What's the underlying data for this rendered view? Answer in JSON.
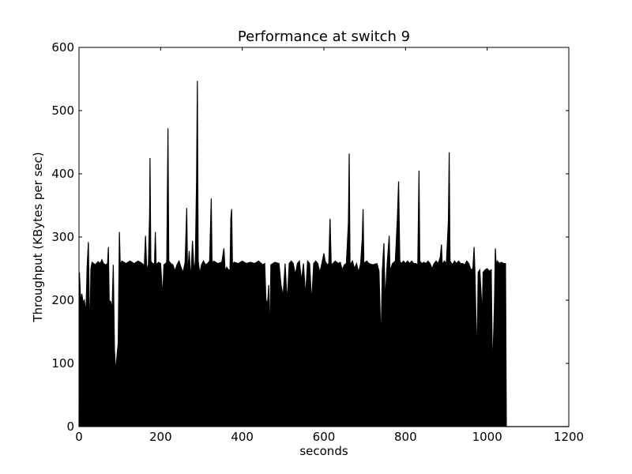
{
  "chart_data": {
    "type": "line",
    "title": "Performance at switch 9",
    "xlabel": "seconds",
    "ylabel": "Throughput (KBytes per sec)",
    "xlim": [
      0,
      1200
    ],
    "ylim": [
      0,
      600
    ],
    "xticks": [
      "0",
      "200",
      "400",
      "600",
      "800",
      "1000",
      "1200"
    ],
    "yticks": [
      "0",
      "100",
      "200",
      "300",
      "400",
      "500",
      "600"
    ],
    "grid": false,
    "fill_to_zero": true,
    "series": [
      {
        "color": "#000000",
        "points": [
          [
            0,
            0
          ],
          [
            1,
            244
          ],
          [
            4,
            200
          ],
          [
            7,
            210
          ],
          [
            10,
            196
          ],
          [
            13,
            200
          ],
          [
            17,
            180
          ],
          [
            20,
            254
          ],
          [
            23,
            292
          ],
          [
            25,
            200
          ],
          [
            27,
            145
          ],
          [
            29,
            250
          ],
          [
            32,
            260
          ],
          [
            40,
            256
          ],
          [
            47,
            261
          ],
          [
            52,
            258
          ],
          [
            56,
            264
          ],
          [
            60,
            258
          ],
          [
            65,
            256
          ],
          [
            70,
            258
          ],
          [
            72,
            284
          ],
          [
            74,
            200
          ],
          [
            78,
            197
          ],
          [
            81,
            184
          ],
          [
            84,
            256
          ],
          [
            87,
            120
          ],
          [
            90,
            86
          ],
          [
            93,
            112
          ],
          [
            96,
            132
          ],
          [
            99,
            308
          ],
          [
            101,
            256
          ],
          [
            105,
            262
          ],
          [
            115,
            258
          ],
          [
            125,
            262
          ],
          [
            135,
            258
          ],
          [
            145,
            262
          ],
          [
            155,
            258
          ],
          [
            160,
            254
          ],
          [
            163,
            302
          ],
          [
            166,
            248
          ],
          [
            170,
            256
          ],
          [
            173,
            336
          ],
          [
            174,
            425
          ],
          [
            176,
            262
          ],
          [
            180,
            258
          ],
          [
            185,
            258
          ],
          [
            187,
            308
          ],
          [
            189,
            256
          ],
          [
            195,
            260
          ],
          [
            200,
            258
          ],
          [
            205,
            204
          ],
          [
            208,
            256
          ],
          [
            212,
            258
          ],
          [
            215,
            260
          ],
          [
            218,
            472
          ],
          [
            220,
            262
          ],
          [
            225,
            258
          ],
          [
            230,
            256
          ],
          [
            235,
            246
          ],
          [
            240,
            256
          ],
          [
            245,
            262
          ],
          [
            250,
            252
          ],
          [
            255,
            244
          ],
          [
            260,
            260
          ],
          [
            264,
            346
          ],
          [
            266,
            236
          ],
          [
            270,
            278
          ],
          [
            274,
            230
          ],
          [
            278,
            294
          ],
          [
            282,
            244
          ],
          [
            285,
            262
          ],
          [
            288,
            390
          ],
          [
            290,
            547
          ],
          [
            292,
            262
          ],
          [
            296,
            242
          ],
          [
            300,
            256
          ],
          [
            305,
            262
          ],
          [
            310,
            256
          ],
          [
            315,
            258
          ],
          [
            320,
            262
          ],
          [
            324,
            361
          ],
          [
            326,
            258
          ],
          [
            330,
            262
          ],
          [
            340,
            258
          ],
          [
            350,
            260
          ],
          [
            355,
            282
          ],
          [
            358,
            246
          ],
          [
            362,
            252
          ],
          [
            366,
            248
          ],
          [
            370,
            248
          ],
          [
            372,
            330
          ],
          [
            374,
            344
          ],
          [
            376,
            256
          ],
          [
            380,
            260
          ],
          [
            390,
            258
          ],
          [
            400,
            262
          ],
          [
            410,
            258
          ],
          [
            420,
            260
          ],
          [
            430,
            258
          ],
          [
            440,
            262
          ],
          [
            450,
            256
          ],
          [
            455,
            258
          ],
          [
            458,
            200
          ],
          [
            462,
            196
          ],
          [
            465,
            224
          ],
          [
            468,
            130
          ],
          [
            470,
            256
          ],
          [
            475,
            258
          ],
          [
            480,
            260
          ],
          [
            490,
            258
          ],
          [
            495,
            224
          ],
          [
            500,
            206
          ],
          [
            505,
            258
          ],
          [
            510,
            196
          ],
          [
            515,
            258
          ],
          [
            520,
            262
          ],
          [
            525,
            258
          ],
          [
            530,
            240
          ],
          [
            535,
            258
          ],
          [
            540,
            262
          ],
          [
            545,
            230
          ],
          [
            550,
            258
          ],
          [
            555,
            206
          ],
          [
            560,
            262
          ],
          [
            565,
            258
          ],
          [
            570,
            196
          ],
          [
            575,
            258
          ],
          [
            580,
            262
          ],
          [
            585,
            258
          ],
          [
            590,
            244
          ],
          [
            595,
            258
          ],
          [
            600,
            274
          ],
          [
            603,
            262
          ],
          [
            608,
            256
          ],
          [
            612,
            258
          ],
          [
            615,
            329
          ],
          [
            618,
            256
          ],
          [
            622,
            258
          ],
          [
            628,
            262
          ],
          [
            635,
            258
          ],
          [
            640,
            260
          ],
          [
            645,
            248
          ],
          [
            650,
            256
          ],
          [
            655,
            258
          ],
          [
            660,
            322
          ],
          [
            662,
            432
          ],
          [
            664,
            256
          ],
          [
            670,
            262
          ],
          [
            675,
            250
          ],
          [
            680,
            258
          ],
          [
            685,
            244
          ],
          [
            690,
            258
          ],
          [
            694,
            298
          ],
          [
            696,
            344
          ],
          [
            698,
            258
          ],
          [
            705,
            262
          ],
          [
            710,
            258
          ],
          [
            720,
            256
          ],
          [
            730,
            258
          ],
          [
            735,
            246
          ],
          [
            740,
            130
          ],
          [
            743,
            246
          ],
          [
            747,
            290
          ],
          [
            750,
            198
          ],
          [
            755,
            258
          ],
          [
            760,
            302
          ],
          [
            762,
            246
          ],
          [
            768,
            258
          ],
          [
            775,
            262
          ],
          [
            780,
            330
          ],
          [
            783,
            388
          ],
          [
            786,
            262
          ],
          [
            790,
            258
          ],
          [
            795,
            262
          ],
          [
            800,
            258
          ],
          [
            805,
            262
          ],
          [
            810,
            258
          ],
          [
            815,
            262
          ],
          [
            820,
            258
          ],
          [
            825,
            258
          ],
          [
            830,
            256
          ],
          [
            833,
            405
          ],
          [
            835,
            262
          ],
          [
            840,
            258
          ],
          [
            845,
            260
          ],
          [
            850,
            258
          ],
          [
            855,
            262
          ],
          [
            860,
            258
          ],
          [
            865,
            250
          ],
          [
            870,
            258
          ],
          [
            875,
            262
          ],
          [
            880,
            258
          ],
          [
            885,
            268
          ],
          [
            888,
            288
          ],
          [
            890,
            256
          ],
          [
            895,
            262
          ],
          [
            900,
            258
          ],
          [
            905,
            326
          ],
          [
            907,
            434
          ],
          [
            909,
            262
          ],
          [
            915,
            256
          ],
          [
            920,
            262
          ],
          [
            925,
            258
          ],
          [
            930,
            262
          ],
          [
            935,
            258
          ],
          [
            940,
            258
          ],
          [
            945,
            256
          ],
          [
            950,
            262
          ],
          [
            955,
            258
          ],
          [
            960,
            248
          ],
          [
            965,
            250
          ],
          [
            968,
            284
          ],
          [
            970,
            246
          ],
          [
            975,
            104
          ],
          [
            978,
            244
          ],
          [
            982,
            248
          ],
          [
            988,
            176
          ],
          [
            990,
            244
          ],
          [
            995,
            248
          ],
          [
            1000,
            250
          ],
          [
            1005,
            246
          ],
          [
            1010,
            248
          ],
          [
            1013,
            86
          ],
          [
            1016,
            150
          ],
          [
            1018,
            200
          ],
          [
            1020,
            282
          ],
          [
            1022,
            256
          ],
          [
            1025,
            262
          ],
          [
            1030,
            258
          ],
          [
            1035,
            260
          ],
          [
            1040,
            258
          ],
          [
            1045,
            258
          ],
          [
            1047,
            0
          ],
          [
            1060,
            0
          ],
          [
            1200,
            0
          ]
        ]
      }
    ]
  }
}
